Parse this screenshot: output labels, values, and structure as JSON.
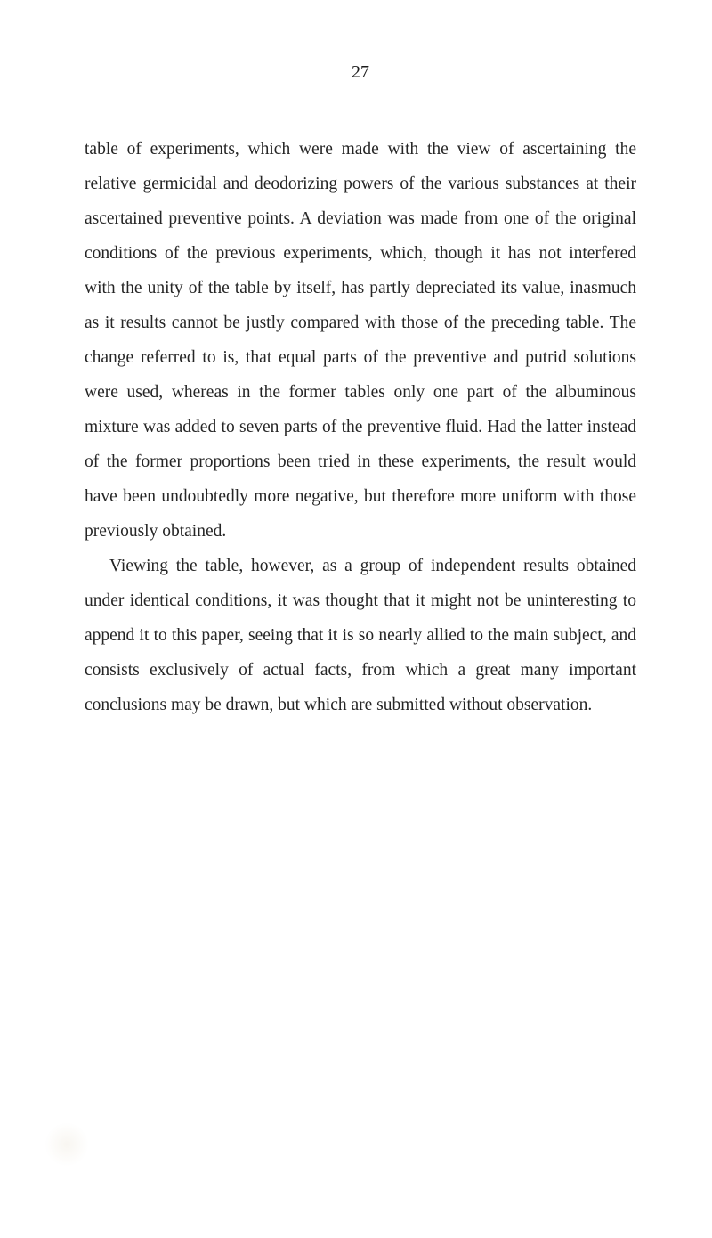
{
  "page": {
    "number": "27",
    "background_color": "#ffffff",
    "text_color": "#252525",
    "font_family": "Georgia, serif",
    "body_font_size": 19.5,
    "line_height": 2.0
  },
  "paragraphs": [
    {
      "text": "table of experiments, which were made with the view of ascertaining the relative germicidal and deodorizing powers of the various substances at their ascertained preventive points. A deviation was made from one of the original conditions of the previous experiments, which, though it has not interfered with the unity of the table by itself, has partly depreciated its value, inasmuch as it results cannot be justly compared with those of the preceding table. The change referred to is, that equal parts of the preventive and putrid solutions were used, whereas in the former tables only one part of the albuminous mixture was added to seven parts of the preventive fluid. Had the latter instead of the former proportions been tried in these experiments, the result would have been undoubtedly more negative, but therefore more uniform with those previously obtained.",
      "indent": false
    },
    {
      "text": "Viewing the table, however, as a group of independent results obtained under identical conditions, it was thought that it might not be uninteresting to append it to this paper, seeing that it is so nearly allied to the main subject, and consists exclusively of actual facts, from which a great many important conclusions may be drawn, but which are submitted without observation.",
      "indent": true
    }
  ]
}
